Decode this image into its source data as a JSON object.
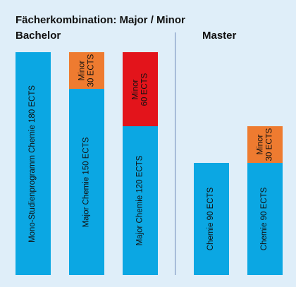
{
  "title": "Fächerkombination: Major / Minor",
  "bachelor_label": "Bachelor",
  "master_label": "Master",
  "columns": {
    "mono": {
      "main_label": "Mono-Studienprogramm Chemie 180 ECTS"
    },
    "major150": {
      "main_label": "Major Chemie 150 ECTS",
      "minor_line1": "Minor",
      "minor_line2": "30 ECTS"
    },
    "major120": {
      "main_label": "Major Chemie 120 ECTS",
      "minor_line1": "Minor",
      "minor_line2": "60 ECTS"
    },
    "master90": {
      "main_label": "Chemie 90 ECTS"
    },
    "master90minor": {
      "main_label": "Chemie 90 ECTS",
      "minor_line1": "Minor",
      "minor_line2": "30 ECTS"
    }
  },
  "colors": {
    "background": "#dfeef9",
    "main": "#0ba7e3",
    "minor_30": "#ee7b30",
    "minor_60": "#e3141b",
    "divider": "#6b88b8"
  }
}
